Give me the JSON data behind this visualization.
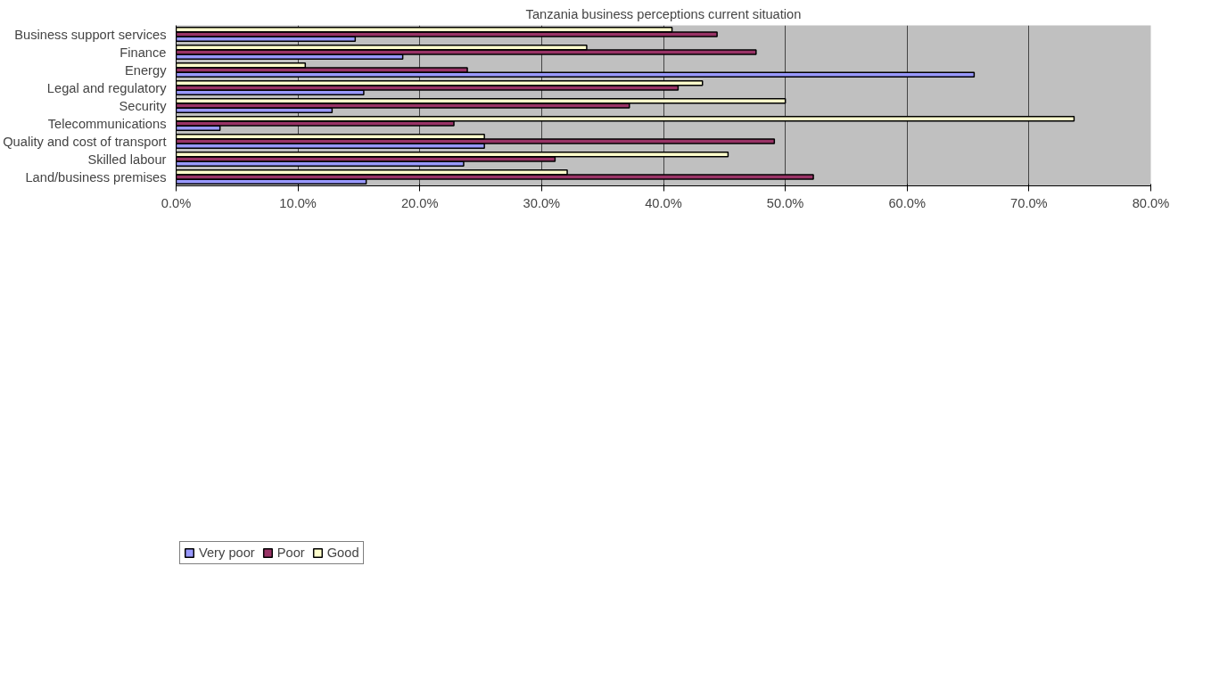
{
  "chart_data": {
    "type": "bar",
    "orientation": "horizontal",
    "title": "Tanzania business perceptions current situation",
    "categories": [
      "Business support services",
      "Finance",
      "Energy",
      "Legal and regulatory",
      "Security",
      "Telecommunications",
      "Quality and cost of transport",
      "Skilled labour",
      "Land/business premises"
    ],
    "series": [
      {
        "name": "Very poor",
        "color": "#9999ff",
        "values": [
          14.7,
          18.6,
          65.5,
          15.4,
          12.8,
          3.6,
          25.3,
          23.6,
          15.6
        ]
      },
      {
        "name": "Poor",
        "color": "#993366",
        "values": [
          44.4,
          47.6,
          23.9,
          41.2,
          37.2,
          22.8,
          49.1,
          31.1,
          52.3
        ]
      },
      {
        "name": "Good",
        "color": "#ffffcc",
        "values": [
          40.7,
          33.7,
          10.6,
          43.2,
          50.0,
          73.7,
          25.3,
          45.3,
          32.1
        ]
      }
    ],
    "xlim": [
      0,
      80
    ],
    "xticks": [
      {
        "value": 0,
        "label": "0.0%"
      },
      {
        "value": 10,
        "label": "10.0%"
      },
      {
        "value": 20,
        "label": "20.0%"
      },
      {
        "value": 30,
        "label": "30.0%"
      },
      {
        "value": 40,
        "label": "40.0%"
      },
      {
        "value": 50,
        "label": "50.0%"
      },
      {
        "value": 60,
        "label": "60.0%"
      },
      {
        "value": 70,
        "label": "70.0%"
      },
      {
        "value": 80,
        "label": "80.0%"
      }
    ],
    "grid": "x",
    "legend": "bottom left"
  }
}
